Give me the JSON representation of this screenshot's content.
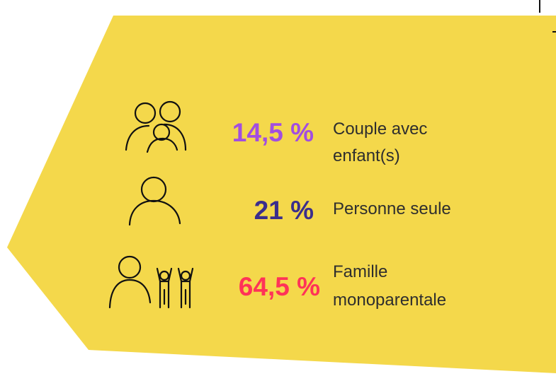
{
  "items": [
    {
      "percent": "14,5 %",
      "label": [
        "Couple avec",
        "enfant(s)"
      ],
      "color": "#a24ee0"
    },
    {
      "percent": "21 %",
      "label": [
        "Personne seule"
      ],
      "color": "#3b2e8c"
    },
    {
      "percent": "64,5 %",
      "label": [
        "Famille",
        "monoparentale"
      ],
      "color": "#ff3358"
    }
  ]
}
